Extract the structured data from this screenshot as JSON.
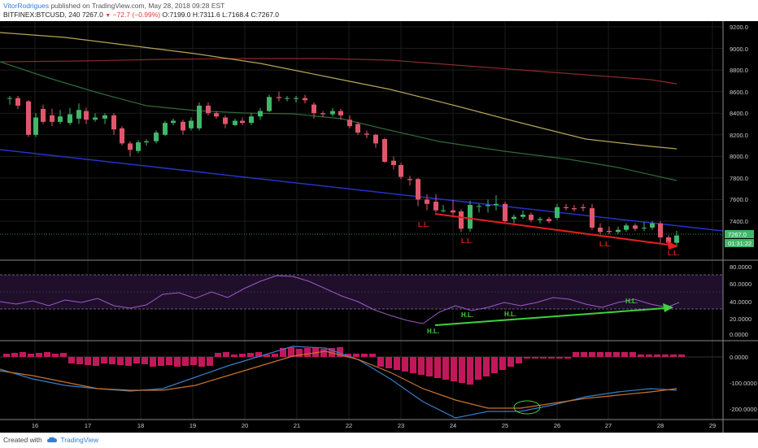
{
  "header": {
    "author": "VitorRodrigues",
    "published_text": "published on TradingView.com, May 28, 2018 09:28 EST",
    "symbol": "BITFINEX:BTCUSD, 240",
    "last": "7267.0",
    "change": "−72.7 (−0.99%)",
    "ohlc": "O:7199.0  H:7311.6  L:7168.4  C:7267.0"
  },
  "price_axis": {
    "ticks": [
      "9200.0",
      "9000.0",
      "8800.0",
      "8600.0",
      "8400.0",
      "8200.0",
      "8000.0",
      "7800.0",
      "7600.0",
      "7400.0"
    ],
    "current_price": "7267.0",
    "countdown": "01:31:22"
  },
  "rsi_axis": {
    "ticks": [
      "80.0000",
      "60.0000",
      "40.0000",
      "20.0000",
      "0.0000"
    ]
  },
  "macd_axis": {
    "ticks": [
      "0.0000",
      "-100.0000",
      "-200.0000"
    ]
  },
  "time_axis": {
    "ticks": [
      "16",
      "17",
      "18",
      "19",
      "20",
      "21",
      "22",
      "23",
      "24",
      "25",
      "26",
      "27",
      "28",
      "29"
    ]
  },
  "annotations": {
    "lower_low": "L.L.",
    "higher_low": "H.L."
  },
  "colors": {
    "up": "#3fb86a",
    "down": "#e0576c",
    "background": "#000000",
    "ma_yellow": "#b4a55a",
    "ma_red": "#8a2a2a",
    "ma_green": "#2f6a3a",
    "trend_blue": "#2433c8",
    "arrow_red": "#e31f1f",
    "arrow_green": "#3fd13f",
    "rsi": "#9b59c7",
    "macd": "#3a7cc4",
    "signal": "#c4742e",
    "hist": "#c2185b"
  },
  "footer": {
    "created_with": "Created with",
    "brand": "TradingView"
  }
}
